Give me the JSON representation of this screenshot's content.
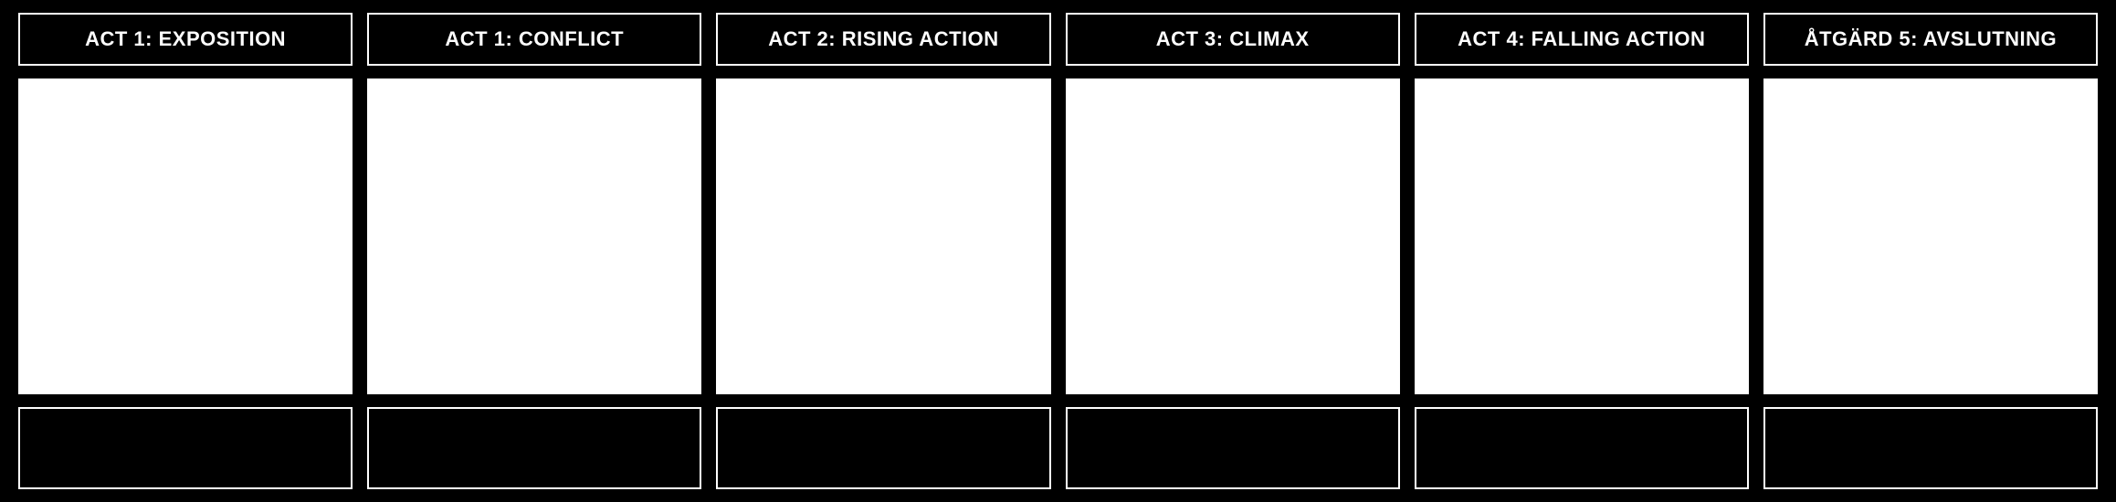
{
  "storyboard": {
    "type": "table",
    "background_color": "#000000",
    "border_color": "#ffffff",
    "header_bg": "#000000",
    "header_text_color": "#ffffff",
    "content_bg": "#ffffff",
    "footer_bg": "#000000",
    "header_fontsize": 22,
    "header_fontweight": "bold",
    "columns": [
      {
        "title": "ACT 1: EXPOSITION"
      },
      {
        "title": "ACT 1: CONFLICT"
      },
      {
        "title": "ACT 2: RISING ACTION"
      },
      {
        "title": "ACT 3: CLIMAX"
      },
      {
        "title": "ACT 4: FALLING ACTION"
      },
      {
        "title": "ÅTGÄRD 5: AVSLUTNING"
      }
    ]
  }
}
